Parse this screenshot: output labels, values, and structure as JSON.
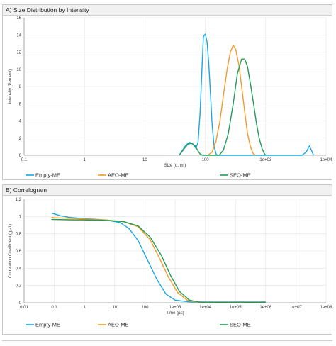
{
  "chart_data": [
    {
      "type": "line",
      "title": "A) Size Distribution by Intensity",
      "xlabel": "Size (d.nm)",
      "ylabel": "Intensity (Percent)",
      "xscale": "log",
      "xlim": [
        0.1,
        10000
      ],
      "ylim": [
        0,
        16
      ],
      "x_ticks": [
        "0.1",
        "1",
        "10",
        "100",
        "1e+03",
        "1e+04"
      ],
      "y_ticks": [
        "0",
        "2",
        "4",
        "6",
        "8",
        "10",
        "12",
        "14",
        "16"
      ],
      "grid": true,
      "legend": "bottom",
      "series": [
        {
          "name": "Empty-ME",
          "color": "#1aa7e6",
          "points": [
            [
              37,
              0
            ],
            [
              42,
              0.6
            ],
            [
              48,
              1.2
            ],
            [
              55,
              1.5
            ],
            [
              62,
              1.3
            ],
            [
              70,
              0.8
            ],
            [
              76,
              1.5
            ],
            [
              82,
              5
            ],
            [
              88,
              10
            ],
            [
              93,
              13.8
            ],
            [
              100,
              14.1
            ],
            [
              107,
              13.2
            ],
            [
              114,
              10.8
            ],
            [
              122,
              7
            ],
            [
              130,
              3.5
            ],
            [
              140,
              1
            ],
            [
              152,
              0.1
            ],
            [
              160,
              0
            ],
            [
              4000,
              0
            ],
            [
              4700,
              0.4
            ],
            [
              5300,
              1.1
            ],
            [
              5800,
              0.5
            ],
            [
              6200,
              0
            ]
          ]
        },
        {
          "name": "AEO-ME",
          "color": "#f29b2a",
          "points": [
            [
              110,
              0
            ],
            [
              130,
              0.4
            ],
            [
              150,
              1.6
            ],
            [
              175,
              4
            ],
            [
              200,
              7
            ],
            [
              230,
              10
            ],
            [
              260,
              12
            ],
            [
              290,
              12.8
            ],
            [
              320,
              12.3
            ],
            [
              360,
              10.5
            ],
            [
              400,
              8
            ],
            [
              450,
              5
            ],
            [
              500,
              2.5
            ],
            [
              560,
              1
            ],
            [
              620,
              0.2
            ],
            [
              680,
              0
            ]
          ]
        },
        {
          "name": "SEO-ME",
          "color": "#1f9d57",
          "points": [
            [
              37,
              0
            ],
            [
              40,
              0.3
            ],
            [
              45,
              0.8
            ],
            [
              52,
              1.3
            ],
            [
              60,
              1.4
            ],
            [
              68,
              1.1
            ],
            [
              76,
              0.5
            ],
            [
              82,
              0.15
            ],
            [
              90,
              0
            ],
            [
              170,
              0
            ],
            [
              200,
              0.6
            ],
            [
              240,
              2.5
            ],
            [
              290,
              6
            ],
            [
              340,
              9.5
            ],
            [
              400,
              11.2
            ],
            [
              450,
              11.2
            ],
            [
              500,
              10.3
            ],
            [
              560,
              8.3
            ],
            [
              630,
              6
            ],
            [
              700,
              3.8
            ],
            [
              780,
              2
            ],
            [
              870,
              0.8
            ],
            [
              950,
              0.2
            ],
            [
              1000,
              0
            ]
          ]
        }
      ]
    },
    {
      "type": "line",
      "title": "B) Correlogram",
      "xlabel": "Time (µs)",
      "ylabel": "Correlation Coefficient (g₂-1)",
      "xscale": "log",
      "xlim": [
        0.01,
        100000000
      ],
      "ylim": [
        0,
        1.2
      ],
      "x_ticks": [
        "0.01",
        "0.1",
        "1",
        "10",
        "100",
        "1e+03",
        "1e+04",
        "1e+05",
        "1e+06",
        "1e+07",
        "1e+08"
      ],
      "y_ticks": [
        "0",
        "0.2",
        "0.4",
        "0.6",
        "0.8",
        "1",
        "1.2"
      ],
      "grid": true,
      "legend": "bottom",
      "series": [
        {
          "name": "Empty-ME",
          "color": "#1aa7e6",
          "points": [
            [
              0.08,
              1.04
            ],
            [
              0.1,
              1.03
            ],
            [
              0.15,
              1.01
            ],
            [
              0.3,
              0.99
            ],
            [
              1,
              0.975
            ],
            [
              5,
              0.96
            ],
            [
              15,
              0.93
            ],
            [
              30,
              0.86
            ],
            [
              60,
              0.72
            ],
            [
              120,
              0.5
            ],
            [
              250,
              0.27
            ],
            [
              500,
              0.1
            ],
            [
              1000,
              0.03
            ],
            [
              3000,
              0.01
            ],
            [
              10000,
              0.008
            ],
            [
              1000000,
              0.008
            ]
          ]
        },
        {
          "name": "AEO-ME",
          "color": "#f29b2a",
          "points": [
            [
              0.08,
              0.99
            ],
            [
              0.1,
              0.985
            ],
            [
              0.3,
              0.98
            ],
            [
              1,
              0.97
            ],
            [
              5,
              0.96
            ],
            [
              20,
              0.94
            ],
            [
              60,
              0.88
            ],
            [
              150,
              0.73
            ],
            [
              300,
              0.52
            ],
            [
              600,
              0.3
            ],
            [
              1200,
              0.12
            ],
            [
              2500,
              0.03
            ],
            [
              5000,
              0.01
            ],
            [
              10000,
              0.005
            ],
            [
              1000000,
              0.005
            ]
          ]
        },
        {
          "name": "SEO-ME",
          "color": "#1f9d57",
          "points": [
            [
              0.08,
              0.965
            ],
            [
              0.1,
              0.965
            ],
            [
              0.3,
              0.962
            ],
            [
              1,
              0.96
            ],
            [
              5,
              0.955
            ],
            [
              20,
              0.94
            ],
            [
              60,
              0.89
            ],
            [
              150,
              0.76
            ],
            [
              350,
              0.55
            ],
            [
              700,
              0.32
            ],
            [
              1400,
              0.13
            ],
            [
              3000,
              0.03
            ],
            [
              6000,
              0.008
            ],
            [
              10000,
              0.004
            ],
            [
              1000000,
              0.004
            ]
          ]
        }
      ]
    }
  ]
}
